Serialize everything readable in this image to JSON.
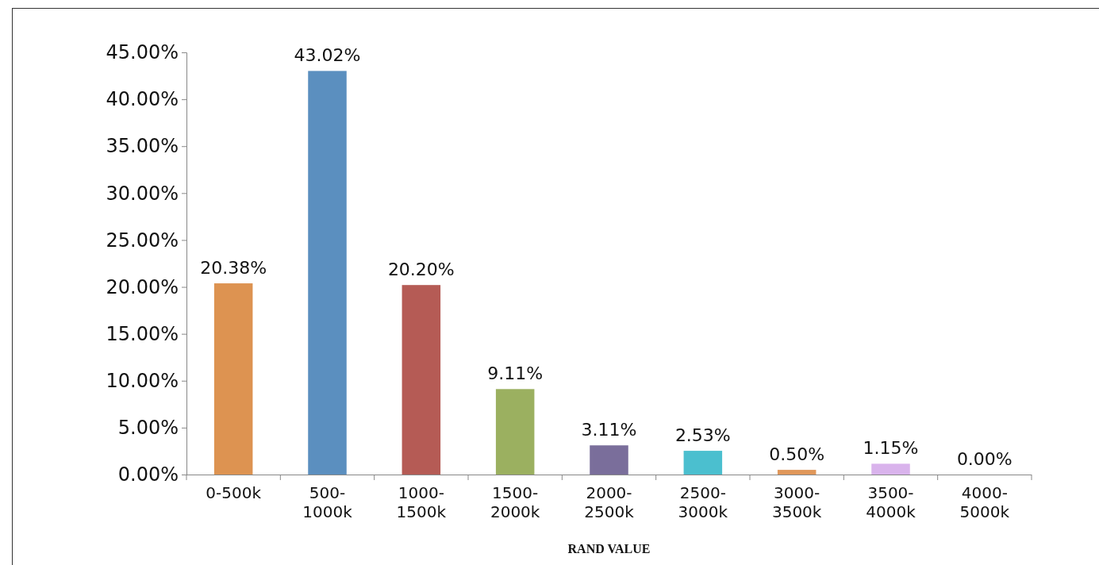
{
  "chart_data": {
    "type": "bar",
    "xlabel": "RAND VALUE",
    "categories": [
      "0-500k",
      "500-1000k",
      "1000-1500k",
      "1500-2000k",
      "2000-2500k",
      "2500-3000k",
      "3000-3500k",
      "3500-4000k",
      "4000-5000k"
    ],
    "values": [
      20.38,
      43.02,
      20.2,
      9.11,
      3.11,
      2.53,
      0.5,
      1.15,
      0.0
    ],
    "colors": [
      "#dd9351",
      "#5b8fbf",
      "#b55b55",
      "#9bb060",
      "#7a6e9b",
      "#4bbfcf",
      "#e0975a",
      "#d9b3ec",
      "#a9c4e4"
    ],
    "value_labels": [
      "20.38%",
      "43.02%",
      "20.20%",
      "9.11%",
      "3.11%",
      "2.53%",
      "0.50%",
      "1.15%",
      "0.00%"
    ],
    "ylim": [
      0,
      45
    ],
    "yticks": [
      {
        "value": 0,
        "label": "0.00%"
      },
      {
        "value": 5,
        "label": "5.00%"
      },
      {
        "value": 10,
        "label": "10.00%"
      },
      {
        "value": 15,
        "label": "15.00%"
      },
      {
        "value": 20,
        "label": "20.00%"
      },
      {
        "value": 25,
        "label": "25.00%"
      },
      {
        "value": 30,
        "label": "30.00%"
      },
      {
        "value": 35,
        "label": "35.00%"
      },
      {
        "value": 40,
        "label": "40.00%"
      },
      {
        "value": 45,
        "label": "45.00%"
      }
    ],
    "grid": false
  }
}
